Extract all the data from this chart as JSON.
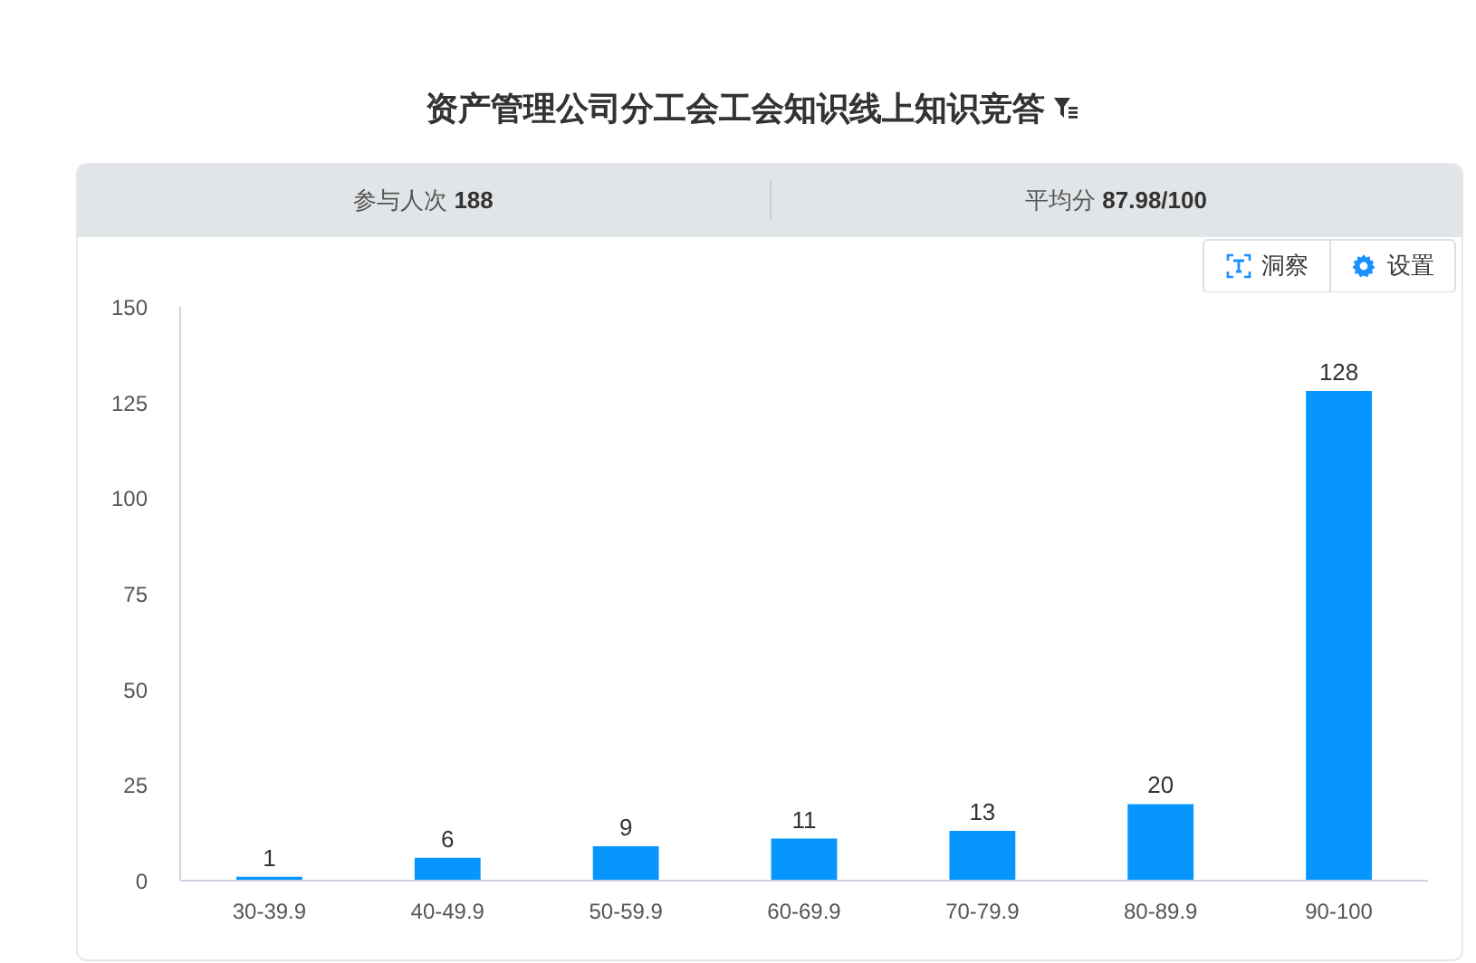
{
  "chart_data": {
    "type": "bar",
    "title": "资产管理公司分工会工会知识线上知识竞答",
    "categories": [
      "30-39.9",
      "40-49.9",
      "50-59.9",
      "60-69.9",
      "70-79.9",
      "80-89.9",
      "90-100"
    ],
    "values": [
      1,
      6,
      9,
      11,
      13,
      20,
      128
    ],
    "color": "#0696fd",
    "ylim": [
      0,
      150
    ],
    "yticks": [
      0,
      25,
      50,
      75,
      100,
      125,
      150
    ],
    "data_labels": true,
    "annotations": [
      "参与人次 188",
      "平均分 87.98/100",
      "洞察",
      "设置"
    ]
  }
}
